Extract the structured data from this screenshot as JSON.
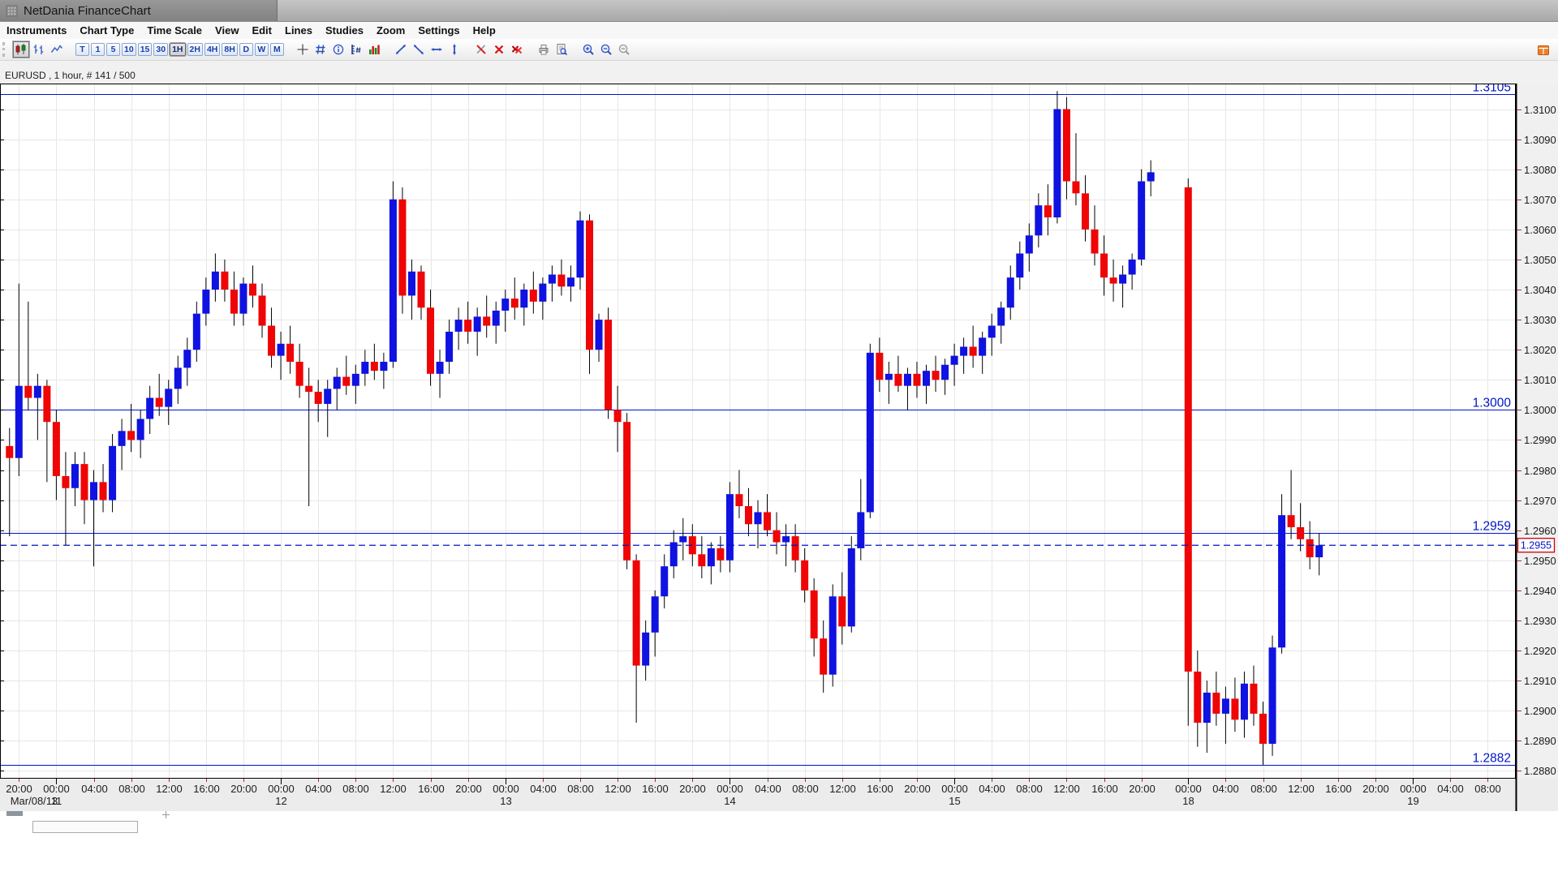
{
  "window": {
    "title": "NetDania FinanceChart"
  },
  "menu": {
    "items": [
      "Instruments",
      "Chart Type",
      "Time Scale",
      "View",
      "Edit",
      "Lines",
      "Studies",
      "Zoom",
      "Settings",
      "Help"
    ]
  },
  "toolbar": {
    "groups": [
      [
        {
          "name": "candlestick-chart-button",
          "icon": "candlestick",
          "active": true
        },
        {
          "name": "bar-chart-button",
          "icon": "ohlc"
        },
        {
          "name": "line-chart-button",
          "icon": "line-chart"
        }
      ],
      [
        {
          "name": "timeframe-tick-button",
          "label": "T"
        },
        {
          "name": "timeframe-1m-button",
          "label": "1"
        },
        {
          "name": "timeframe-5m-button",
          "label": "5"
        },
        {
          "name": "timeframe-10m-button",
          "label": "10"
        },
        {
          "name": "timeframe-15m-button",
          "label": "15"
        },
        {
          "name": "timeframe-30m-button",
          "label": "30"
        },
        {
          "name": "timeframe-1h-button",
          "label": "1H",
          "active": true
        },
        {
          "name": "timeframe-2h-button",
          "label": "2H"
        },
        {
          "name": "timeframe-4h-button",
          "label": "4H"
        },
        {
          "name": "timeframe-8h-button",
          "label": "8H"
        },
        {
          "name": "timeframe-1d-button",
          "label": "D"
        },
        {
          "name": "timeframe-1w-button",
          "label": "W"
        },
        {
          "name": "timeframe-1mo-button",
          "label": "M"
        }
      ],
      [
        {
          "name": "crosshair-button",
          "icon": "crosshair"
        },
        {
          "name": "grid-button",
          "icon": "grid"
        },
        {
          "name": "info-button",
          "icon": "info"
        },
        {
          "name": "price-levels-button",
          "icon": "price-levels"
        },
        {
          "name": "volume-button",
          "icon": "volume"
        }
      ],
      [
        {
          "name": "trendline-up-button",
          "icon": "trend-up"
        },
        {
          "name": "trendline-down-button",
          "icon": "trend-down"
        },
        {
          "name": "horizontal-line-button",
          "icon": "trend-h"
        },
        {
          "name": "vertical-line-button",
          "icon": "trend-v"
        }
      ],
      [
        {
          "name": "erase-line-button",
          "icon": "erase-line"
        },
        {
          "name": "delete-line-button",
          "icon": "delete-line"
        },
        {
          "name": "delete-all-lines-button",
          "icon": "delete-all"
        }
      ],
      [
        {
          "name": "print-button",
          "icon": "print"
        },
        {
          "name": "print-preview-button",
          "icon": "print-preview"
        }
      ],
      [
        {
          "name": "zoom-in-button",
          "icon": "zoom-in"
        },
        {
          "name": "zoom-out-button",
          "icon": "zoom-out"
        },
        {
          "name": "zoom-off-button",
          "icon": "zoom-off"
        }
      ]
    ],
    "panel_icon_name": "layout-panel-icon"
  },
  "chart": {
    "instrument_label": "EURUSD , 1 hour, # 141 / 500"
  },
  "chart_data": {
    "type": "candlestick",
    "symbol": "EURUSD",
    "interval": "1 hour",
    "visible_count_label": "# 141 / 500",
    "colors": {
      "up": "#0f12e0",
      "down": "#ef0505",
      "wick": "#000000",
      "grid": "#e7e7e7",
      "line": "#0014c8",
      "axis_text": "#1a1a1a",
      "axis_tick": "#b03020",
      "plot_bg": "#ffffff",
      "axis_bg": "#f0f0f0",
      "strip_bg": "#ececec",
      "badge_border": "#cc0000"
    },
    "y_axis": {
      "min": 1.28774,
      "max": 1.31085,
      "tick_step": 0.001,
      "tick_labels": [
        "1.3100",
        "1.3090",
        "1.3080",
        "1.3070",
        "1.3060",
        "1.3050",
        "1.3040",
        "1.3030",
        "1.3020",
        "1.3010",
        "1.3000",
        "1.2990",
        "1.2980",
        "1.2970",
        "1.2960",
        "1.2950",
        "1.2940",
        "1.2930",
        "1.2920",
        "1.2910",
        "1.2900",
        "1.2890",
        "1.2880"
      ]
    },
    "x_axis": {
      "slots": 161,
      "weekend_gap": {
        "after_index": 122,
        "extra_slots": 3
      },
      "ticks": [
        {
          "slot": 1,
          "label": "20:00",
          "date": "Mar/08/13"
        },
        {
          "slot": 5,
          "label": "00:00",
          "date": "11"
        },
        {
          "slot": 9,
          "label": "04:00"
        },
        {
          "slot": 13,
          "label": "08:00"
        },
        {
          "slot": 17,
          "label": "12:00"
        },
        {
          "slot": 21,
          "label": "16:00"
        },
        {
          "slot": 25,
          "label": "20:00"
        },
        {
          "slot": 29,
          "label": "00:00",
          "date": "12"
        },
        {
          "slot": 33,
          "label": "04:00"
        },
        {
          "slot": 37,
          "label": "08:00"
        },
        {
          "slot": 41,
          "label": "12:00"
        },
        {
          "slot": 45,
          "label": "16:00"
        },
        {
          "slot": 49,
          "label": "20:00"
        },
        {
          "slot": 53,
          "label": "00:00",
          "date": "13"
        },
        {
          "slot": 57,
          "label": "04:00"
        },
        {
          "slot": 61,
          "label": "08:00"
        },
        {
          "slot": 65,
          "label": "12:00"
        },
        {
          "slot": 69,
          "label": "16:00"
        },
        {
          "slot": 73,
          "label": "20:00"
        },
        {
          "slot": 77,
          "label": "00:00",
          "date": "14"
        },
        {
          "slot": 81,
          "label": "04:00"
        },
        {
          "slot": 85,
          "label": "08:00"
        },
        {
          "slot": 89,
          "label": "12:00"
        },
        {
          "slot": 93,
          "label": "16:00"
        },
        {
          "slot": 97,
          "label": "20:00"
        },
        {
          "slot": 101,
          "label": "00:00",
          "date": "15"
        },
        {
          "slot": 105,
          "label": "04:00"
        },
        {
          "slot": 109,
          "label": "08:00"
        },
        {
          "slot": 113,
          "label": "12:00"
        },
        {
          "slot": 117,
          "label": "16:00"
        },
        {
          "slot": 121,
          "label": "20:00"
        },
        {
          "slot": 126,
          "label": "00:00",
          "date": "18"
        },
        {
          "slot": 130,
          "label": "04:00"
        },
        {
          "slot": 134,
          "label": "08:00"
        },
        {
          "slot": 138,
          "label": "12:00"
        },
        {
          "slot": 142,
          "label": "16:00"
        },
        {
          "slot": 146,
          "label": "20:00"
        },
        {
          "slot": 150,
          "label": "00:00",
          "date": "19"
        },
        {
          "slot": 154,
          "label": "04:00"
        },
        {
          "slot": 158,
          "label": "08:00"
        }
      ]
    },
    "h_lines": [
      {
        "price": 1.3105,
        "label": "1.3105"
      },
      {
        "price": 1.3,
        "label": "1.3000"
      },
      {
        "price": 1.2959,
        "label": "1.2959"
      },
      {
        "price": 1.2882,
        "label": "1.2882"
      }
    ],
    "current_price": {
      "price": 1.2955,
      "label": "1.2955"
    },
    "candles": [
      [
        1.2988,
        1.2994,
        1.2958,
        1.2984
      ],
      [
        1.2984,
        1.3042,
        1.2978,
        1.3008
      ],
      [
        1.3008,
        1.3036,
        1.3,
        1.3004
      ],
      [
        1.3004,
        1.3012,
        1.299,
        1.3008
      ],
      [
        1.3008,
        1.301,
        1.2976,
        1.2996
      ],
      [
        1.2996,
        1.3,
        1.297,
        1.2978
      ],
      [
        1.2978,
        1.2986,
        1.2955,
        1.2974
      ],
      [
        1.2974,
        1.2986,
        1.2968,
        1.2982
      ],
      [
        1.2982,
        1.2986,
        1.2962,
        1.297
      ],
      [
        1.297,
        1.298,
        1.2948,
        1.2976
      ],
      [
        1.2976,
        1.2982,
        1.2966,
        1.297
      ],
      [
        1.297,
        1.2992,
        1.2966,
        1.2988
      ],
      [
        1.2988,
        1.2997,
        1.298,
        1.2993
      ],
      [
        1.2993,
        1.3002,
        1.2986,
        1.299
      ],
      [
        1.299,
        1.3,
        1.2984,
        1.2997
      ],
      [
        1.2997,
        1.3008,
        1.2992,
        1.3004
      ],
      [
        1.3004,
        1.3012,
        1.2998,
        1.3001
      ],
      [
        1.3001,
        1.301,
        1.2995,
        1.3007
      ],
      [
        1.3007,
        1.3018,
        1.3002,
        1.3014
      ],
      [
        1.3014,
        1.3024,
        1.3008,
        1.302
      ],
      [
        1.302,
        1.3036,
        1.3016,
        1.3032
      ],
      [
        1.3032,
        1.3044,
        1.3028,
        1.304
      ],
      [
        1.304,
        1.3052,
        1.3036,
        1.3046
      ],
      [
        1.3046,
        1.305,
        1.3036,
        1.304
      ],
      [
        1.304,
        1.3046,
        1.3028,
        1.3032
      ],
      [
        1.3032,
        1.3044,
        1.3028,
        1.3042
      ],
      [
        1.3042,
        1.3048,
        1.3034,
        1.3038
      ],
      [
        1.3038,
        1.3042,
        1.3024,
        1.3028
      ],
      [
        1.3028,
        1.3034,
        1.3014,
        1.3018
      ],
      [
        1.3018,
        1.3026,
        1.301,
        1.3022
      ],
      [
        1.3022,
        1.3028,
        1.3012,
        1.3016
      ],
      [
        1.3016,
        1.3022,
        1.3004,
        1.3008
      ],
      [
        1.3008,
        1.3014,
        1.2968,
        1.3006
      ],
      [
        1.3006,
        1.301,
        1.2996,
        1.3002
      ],
      [
        1.3002,
        1.301,
        1.2991,
        1.3007
      ],
      [
        1.3007,
        1.3014,
        1.3,
        1.3011
      ],
      [
        1.3011,
        1.3018,
        1.3005,
        1.3008
      ],
      [
        1.3008,
        1.3015,
        1.3002,
        1.3012
      ],
      [
        1.3012,
        1.302,
        1.3008,
        1.3016
      ],
      [
        1.3016,
        1.3022,
        1.301,
        1.3013
      ],
      [
        1.3013,
        1.3019,
        1.3007,
        1.3016
      ],
      [
        1.3016,
        1.3076,
        1.3014,
        1.307
      ],
      [
        1.307,
        1.3074,
        1.3032,
        1.3038
      ],
      [
        1.3038,
        1.305,
        1.303,
        1.3046
      ],
      [
        1.3046,
        1.3048,
        1.303,
        1.3034
      ],
      [
        1.3034,
        1.304,
        1.3008,
        1.3012
      ],
      [
        1.3012,
        1.302,
        1.3004,
        1.3016
      ],
      [
        1.3016,
        1.303,
        1.3012,
        1.3026
      ],
      [
        1.3026,
        1.3034,
        1.302,
        1.303
      ],
      [
        1.303,
        1.3036,
        1.3022,
        1.3026
      ],
      [
        1.3026,
        1.3034,
        1.3018,
        1.3031
      ],
      [
        1.3031,
        1.3038,
        1.3024,
        1.3028
      ],
      [
        1.3028,
        1.3036,
        1.3022,
        1.3033
      ],
      [
        1.3033,
        1.304,
        1.3026,
        1.3037
      ],
      [
        1.3037,
        1.3044,
        1.303,
        1.3034
      ],
      [
        1.3034,
        1.3042,
        1.3028,
        1.304
      ],
      [
        1.304,
        1.3046,
        1.3032,
        1.3036
      ],
      [
        1.3036,
        1.3044,
        1.303,
        1.3042
      ],
      [
        1.3042,
        1.3048,
        1.3036,
        1.3045
      ],
      [
        1.3045,
        1.305,
        1.3038,
        1.3041
      ],
      [
        1.3041,
        1.3048,
        1.3036,
        1.3044
      ],
      [
        1.3044,
        1.3066,
        1.304,
        1.3063
      ],
      [
        1.3063,
        1.3065,
        1.3012,
        1.302
      ],
      [
        1.302,
        1.3032,
        1.3016,
        1.303
      ],
      [
        1.303,
        1.3034,
        1.2997,
        1.3
      ],
      [
        1.3,
        1.3008,
        1.2986,
        1.2996
      ],
      [
        1.2996,
        1.2999,
        1.2947,
        1.295
      ],
      [
        1.295,
        1.2952,
        1.2896,
        1.2915
      ],
      [
        1.2915,
        1.293,
        1.291,
        1.2926
      ],
      [
        1.2926,
        1.294,
        1.2918,
        1.2938
      ],
      [
        1.2938,
        1.2952,
        1.2934,
        1.2948
      ],
      [
        1.2948,
        1.296,
        1.2944,
        1.2956
      ],
      [
        1.2956,
        1.2964,
        1.295,
        1.2958
      ],
      [
        1.2958,
        1.2962,
        1.2948,
        1.2952
      ],
      [
        1.2952,
        1.2958,
        1.2944,
        1.2948
      ],
      [
        1.2948,
        1.2956,
        1.2942,
        1.2954
      ],
      [
        1.2954,
        1.2958,
        1.2946,
        1.295
      ],
      [
        1.295,
        1.2976,
        1.2946,
        1.2972
      ],
      [
        1.2972,
        1.298,
        1.2964,
        1.2968
      ],
      [
        1.2968,
        1.2974,
        1.2958,
        1.2962
      ],
      [
        1.2962,
        1.297,
        1.2954,
        1.2966
      ],
      [
        1.2966,
        1.2972,
        1.2958,
        1.296
      ],
      [
        1.296,
        1.2966,
        1.2952,
        1.2956
      ],
      [
        1.2956,
        1.2962,
        1.2948,
        1.2958
      ],
      [
        1.2958,
        1.2962,
        1.2946,
        1.295
      ],
      [
        1.295,
        1.2954,
        1.2936,
        1.294
      ],
      [
        1.294,
        1.2944,
        1.2918,
        1.2924
      ],
      [
        1.2924,
        1.293,
        1.2906,
        1.2912
      ],
      [
        1.2912,
        1.2942,
        1.2908,
        1.2938
      ],
      [
        1.2938,
        1.2946,
        1.2922,
        1.2928
      ],
      [
        1.2928,
        1.2958,
        1.2926,
        1.2954
      ],
      [
        1.2954,
        1.2977,
        1.295,
        1.2966
      ],
      [
        1.2966,
        1.3022,
        1.2964,
        1.3019
      ],
      [
        1.3019,
        1.3024,
        1.3006,
        1.301
      ],
      [
        1.301,
        1.3016,
        1.3002,
        1.3012
      ],
      [
        1.3012,
        1.3018,
        1.3006,
        1.3008
      ],
      [
        1.3008,
        1.3014,
        1.3,
        1.3012
      ],
      [
        1.3012,
        1.3016,
        1.3004,
        1.3008
      ],
      [
        1.3008,
        1.3015,
        1.3002,
        1.3013
      ],
      [
        1.3013,
        1.3018,
        1.3006,
        1.301
      ],
      [
        1.301,
        1.3017,
        1.3005,
        1.3015
      ],
      [
        1.3015,
        1.3022,
        1.3008,
        1.3018
      ],
      [
        1.3018,
        1.3024,
        1.3012,
        1.3021
      ],
      [
        1.3021,
        1.3028,
        1.3014,
        1.3018
      ],
      [
        1.3018,
        1.3026,
        1.3012,
        1.3024
      ],
      [
        1.3024,
        1.3032,
        1.3018,
        1.3028
      ],
      [
        1.3028,
        1.3036,
        1.3022,
        1.3034
      ],
      [
        1.3034,
        1.3048,
        1.303,
        1.3044
      ],
      [
        1.3044,
        1.3056,
        1.304,
        1.3052
      ],
      [
        1.3052,
        1.3062,
        1.3046,
        1.3058
      ],
      [
        1.3058,
        1.3072,
        1.3054,
        1.3068
      ],
      [
        1.3068,
        1.3075,
        1.3058,
        1.3064
      ],
      [
        1.3064,
        1.3106,
        1.3062,
        1.31
      ],
      [
        1.31,
        1.3104,
        1.307,
        1.3076
      ],
      [
        1.3076,
        1.3092,
        1.3068,
        1.3072
      ],
      [
        1.3072,
        1.3078,
        1.3056,
        1.306
      ],
      [
        1.306,
        1.3068,
        1.3048,
        1.3052
      ],
      [
        1.3052,
        1.3058,
        1.3038,
        1.3044
      ],
      [
        1.3044,
        1.305,
        1.3036,
        1.3042
      ],
      [
        1.3042,
        1.3048,
        1.3034,
        1.3045
      ],
      [
        1.3045,
        1.3052,
        1.304,
        1.305
      ],
      [
        1.305,
        1.308,
        1.3048,
        1.3076
      ],
      [
        1.3076,
        1.3083,
        1.3071,
        1.3079
      ],
      [
        1.3074,
        1.3077,
        1.2895,
        1.2913
      ],
      [
        1.2913,
        1.292,
        1.2888,
        1.2896
      ],
      [
        1.2896,
        1.291,
        1.2886,
        1.2906
      ],
      [
        1.2906,
        1.2913,
        1.2895,
        1.2899
      ],
      [
        1.2899,
        1.2908,
        1.2889,
        1.2904
      ],
      [
        1.2904,
        1.2911,
        1.2893,
        1.2897
      ],
      [
        1.2897,
        1.2913,
        1.2891,
        1.2909
      ],
      [
        1.2909,
        1.2915,
        1.2895,
        1.2899
      ],
      [
        1.2899,
        1.2903,
        1.2882,
        1.2889
      ],
      [
        1.2889,
        1.2925,
        1.2885,
        1.2921
      ],
      [
        1.2921,
        1.2972,
        1.2919,
        1.2965
      ],
      [
        1.2965,
        1.298,
        1.2957,
        1.2961
      ],
      [
        1.2961,
        1.2969,
        1.2953,
        1.2957
      ],
      [
        1.2957,
        1.2963,
        1.2947,
        1.2951
      ],
      [
        1.2951,
        1.2959,
        1.2945,
        1.2955
      ]
    ]
  }
}
